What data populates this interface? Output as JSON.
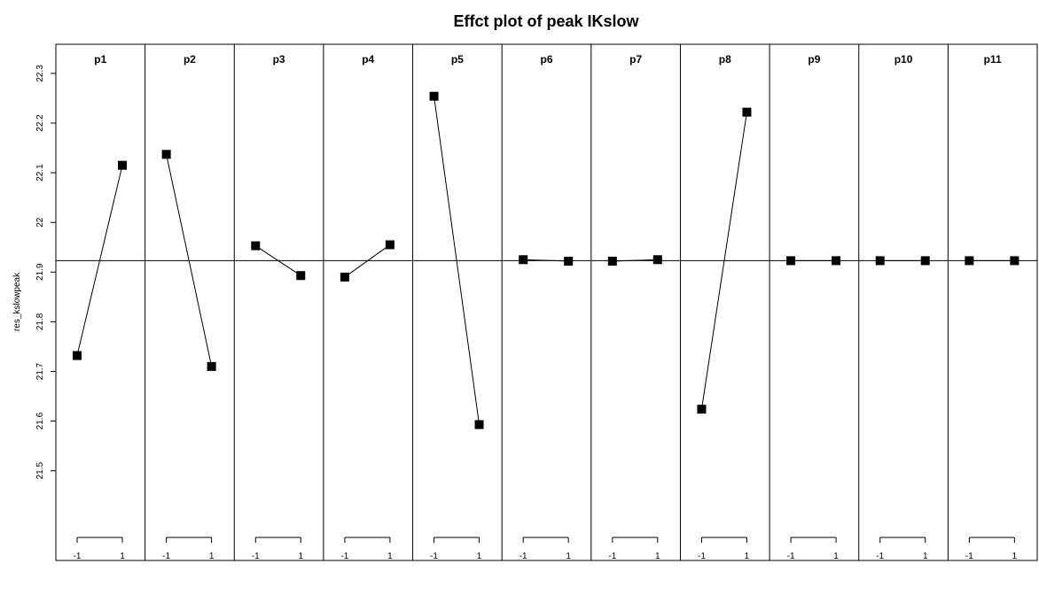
{
  "chart_data": {
    "type": "line",
    "title": "Effct plot of peak IKslow",
    "ylabel": "res_kslowpeak",
    "ylim": [
      21.45,
      22.38
    ],
    "yticks": [
      "21.5",
      "21.6",
      "21.7",
      "21.8",
      "21.9",
      "22",
      "22.1",
      "22.2",
      "22.3"
    ],
    "ytick_values": [
      21.5,
      21.6,
      21.7,
      21.8,
      21.9,
      22.0,
      22.1,
      22.2,
      22.3
    ],
    "x_levels": [
      "-1",
      "1"
    ],
    "reference_line": 21.923,
    "panels": [
      {
        "name": "p1",
        "values": [
          21.732,
          22.115
        ]
      },
      {
        "name": "p2",
        "values": [
          22.137,
          21.71
        ]
      },
      {
        "name": "p3",
        "values": [
          21.953,
          21.893
        ]
      },
      {
        "name": "p4",
        "values": [
          21.89,
          21.955
        ]
      },
      {
        "name": "p5",
        "values": [
          22.254,
          21.593
        ]
      },
      {
        "name": "p6",
        "values": [
          21.925,
          21.922
        ]
      },
      {
        "name": "p7",
        "values": [
          21.922,
          21.925
        ]
      },
      {
        "name": "p8",
        "values": [
          21.624,
          22.222
        ]
      },
      {
        "name": "p9",
        "values": [
          21.923,
          21.923
        ]
      },
      {
        "name": "p10",
        "values": [
          21.923,
          21.923
        ]
      },
      {
        "name": "p11",
        "values": [
          21.923,
          21.923
        ]
      }
    ],
    "grid": false,
    "legend": "none"
  }
}
